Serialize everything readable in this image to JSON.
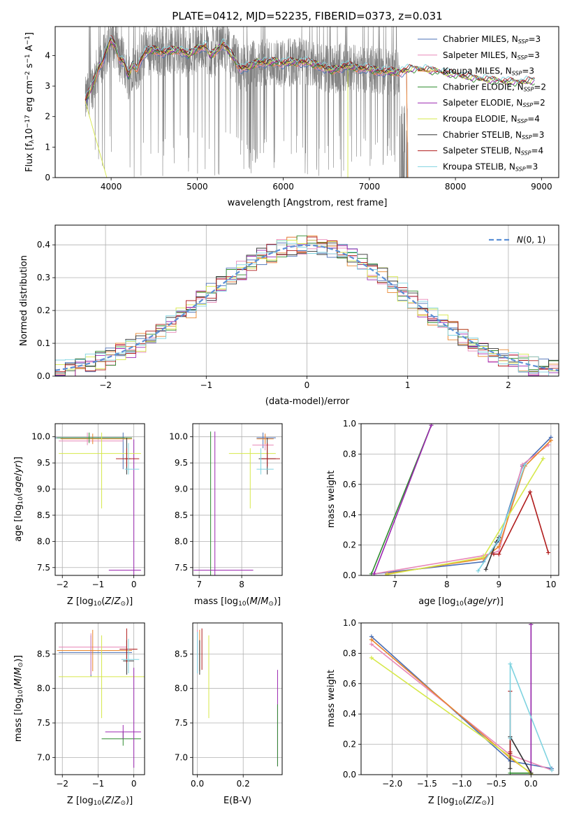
{
  "figure": {
    "title": "PLATE=0412, MJD=52235, FIBERID=0373, z=0.031"
  },
  "colors": {
    "Chabrier MILES": "#4a6fb5",
    "Salpeter MILES": "#e888b8",
    "Kroupa MILES": "#e8852c",
    "Chabrier ELODIE": "#2e8b2e",
    "Salpeter ELODIE": "#9c27b0",
    "Kroupa ELODIE": "#d6e84a",
    "Chabrier STELIB": "#333333",
    "Salpeter STELIB": "#b01c1c",
    "Kroupa STELIB": "#7fd3e0",
    "data": "#808080",
    "gaussian": "#5b8fd6"
  },
  "chart_data": [
    {
      "id": "spectrum",
      "type": "line",
      "xlabel": "wavelength [Angstrom, rest frame]",
      "ylabel": "Flux [f_λ 10^-17 erg cm^-2 s^-1 A^-1]",
      "xlim": [
        3350,
        9200
      ],
      "ylim": [
        0,
        4.95
      ],
      "xticks": [
        4000,
        5000,
        6000,
        7000,
        8000,
        9000
      ],
      "yticks": [
        0,
        1,
        2,
        3,
        4
      ],
      "legend_position": "top-right",
      "legend": [
        {
          "base": "Chabrier MILES, N",
          "sub": "SSP",
          "tail": "=3"
        },
        {
          "base": "Salpeter MILES, N",
          "sub": "SSP",
          "tail": "=3"
        },
        {
          "base": "Kroupa MILES, N",
          "sub": "SSP",
          "tail": "=3"
        },
        {
          "base": "Chabrier ELODIE, N",
          "sub": "SSP",
          "tail": "=2"
        },
        {
          "base": "Salpeter ELODIE, N",
          "sub": "SSP",
          "tail": "=2"
        },
        {
          "base": "Kroupa ELODIE, N",
          "sub": "SSP",
          "tail": "=4"
        },
        {
          "base": "Chabrier STELIB, N",
          "sub": "SSP",
          "tail": "=3"
        },
        {
          "base": "Salpeter STELIB, N",
          "sub": "SSP",
          "tail": "=4"
        },
        {
          "base": "Kroupa STELIB, N",
          "sub": "SSP",
          "tail": "=3"
        }
      ],
      "model_curve": {
        "x": [
          3700,
          3780,
          3850,
          3900,
          3950,
          4000,
          4050,
          4100,
          4150,
          4200,
          4250,
          4300,
          4350,
          4400,
          4500,
          4600,
          4700,
          4800,
          4900,
          5000,
          5100,
          5150,
          5200,
          5300,
          5400,
          5500,
          5600,
          5700,
          5800,
          5900,
          6000,
          6200,
          6400,
          6563,
          6700,
          6900,
          7100,
          7300,
          7500,
          7700,
          7900,
          8100,
          8300,
          8500,
          8700,
          8900
        ],
        "y": [
          2.5,
          3.0,
          3.6,
          3.8,
          4.2,
          4.5,
          4.3,
          3.9,
          3.8,
          3.3,
          3.7,
          3.6,
          3.9,
          4.1,
          4.2,
          4.1,
          4.15,
          4.2,
          4.0,
          4.25,
          4.3,
          4.0,
          4.1,
          4.4,
          4.0,
          3.6,
          3.6,
          3.8,
          3.75,
          3.8,
          3.75,
          3.8,
          3.7,
          3.5,
          3.65,
          3.6,
          3.5,
          3.45,
          3.55,
          3.5,
          3.4,
          3.3,
          3.2,
          3.15,
          3.1,
          3.15
        ]
      },
      "data_range": [
        3700,
        7450
      ]
    },
    {
      "id": "residuals",
      "type": "line",
      "xlabel": "(data-model)/error",
      "ylabel": "Normed distribution",
      "xlim": [
        -2.5,
        2.5
      ],
      "ylim": [
        0,
        0.46
      ],
      "xticks": [
        -2,
        -1,
        0,
        1,
        2
      ],
      "yticks": [
        0.0,
        0.1,
        0.2,
        0.3,
        0.4
      ],
      "grid": true,
      "legend_position": "top-right",
      "legend": [
        {
          "label": "N(0, 1)"
        }
      ],
      "bin_width": 0.1
    },
    {
      "id": "age_vs_Z",
      "type": "scatter",
      "xlabel": "Z [log10(Z/Z_sun)]",
      "ylabel": "age [log10(age/yr)]",
      "xlim": [
        -2.2,
        0.3
      ],
      "ylim": [
        7.35,
        10.25
      ],
      "xticks": [
        -2,
        -1,
        0
      ],
      "yticks": [
        7.5,
        8.0,
        8.5,
        9.0,
        9.5,
        10.0
      ],
      "grid": true
    },
    {
      "id": "age_vs_mass",
      "type": "scatter",
      "xlabel": "mass [log10(M/M_sun)]",
      "xlim": [
        6.85,
        8.95
      ],
      "ylim": [
        7.35,
        10.25
      ],
      "xticks": [
        7,
        8
      ],
      "yticks": [
        7.5,
        8.0,
        8.5,
        9.0,
        9.5,
        10.0
      ],
      "grid": true
    },
    {
      "id": "weight_vs_age",
      "type": "line",
      "xlabel": "age [log10(age/yr)]",
      "ylabel": "mass weight",
      "xlim": [
        6.35,
        10.15
      ],
      "ylim": [
        0,
        1
      ],
      "xticks": [
        7,
        8,
        9,
        10
      ],
      "yticks": [
        0.0,
        0.2,
        0.4,
        0.6,
        0.8,
        1.0
      ],
      "grid": true,
      "series": [
        {
          "name": "Chabrier MILES",
          "x": [
            6.6,
            8.7,
            9.0,
            9.45,
            10.0
          ],
          "y": [
            0.01,
            0.09,
            0.23,
            0.72,
            0.91
          ]
        },
        {
          "name": "Salpeter MILES",
          "x": [
            6.6,
            8.7,
            9.0,
            9.45,
            9.95
          ],
          "y": [
            0.01,
            0.13,
            0.16,
            0.73,
            0.86
          ]
        },
        {
          "name": "Kroupa MILES",
          "x": [
            6.85,
            8.7,
            9.0,
            9.5,
            10.0
          ],
          "y": [
            0.01,
            0.11,
            0.19,
            0.72,
            0.89
          ]
        },
        {
          "name": "Chabrier ELODIE",
          "x": [
            6.55,
            7.7
          ],
          "y": [
            0.01,
            0.99
          ]
        },
        {
          "name": "Salpeter ELODIE",
          "x": [
            6.6,
            7.7
          ],
          "y": [
            0.01,
            0.99
          ]
        },
        {
          "name": "Kroupa ELODIE",
          "x": [
            6.85,
            8.7,
            9.85
          ],
          "y": [
            0.005,
            0.12,
            0.77
          ]
        },
        {
          "name": "Chabrier STELIB",
          "x": [
            8.75,
            8.95,
            9.0
          ],
          "y": [
            0.04,
            0.22,
            0.25
          ]
        },
        {
          "name": "Salpeter STELIB",
          "x": [
            8.9,
            9.0,
            9.6,
            9.95
          ],
          "y": [
            0.14,
            0.14,
            0.55,
            0.15
          ]
        },
        {
          "name": "Kroupa STELIB",
          "x": [
            8.6,
            9.0,
            9.5
          ],
          "y": [
            0.03,
            0.24,
            0.73
          ]
        }
      ]
    },
    {
      "id": "mass_vs_Z",
      "type": "scatter",
      "xlabel": "Z [log10(Z/Z_sun)]",
      "ylabel": "mass [log10(M/M_sun)]",
      "xlim": [
        -2.2,
        0.3
      ],
      "ylim": [
        6.75,
        8.95
      ],
      "xticks": [
        -2,
        -1,
        0
      ],
      "yticks": [
        7.0,
        7.5,
        8.0,
        8.5
      ],
      "grid": true
    },
    {
      "id": "mass_vs_EBV",
      "type": "scatter",
      "xlabel": "E(B-V)",
      "xlim": [
        -0.02,
        0.37
      ],
      "ylim": [
        6.75,
        8.95
      ],
      "xticks": [
        0.0,
        0.2
      ],
      "yticks": [
        7.0,
        7.5,
        8.0,
        8.5
      ],
      "grid": true
    },
    {
      "id": "weight_vs_Z",
      "type": "line",
      "xlabel": "Z [log10(Z/Z_sun)]",
      "ylabel": "mass weight",
      "xlim": [
        -2.45,
        0.4
      ],
      "ylim": [
        0,
        1
      ],
      "xticks": [
        -2.0,
        -1.5,
        -1.0,
        -0.5,
        0.0
      ],
      "yticks": [
        0.0,
        0.2,
        0.4,
        0.6,
        0.8,
        1.0
      ],
      "grid": true,
      "series": [
        {
          "name": "Chabrier MILES",
          "x": [
            -2.3,
            -0.3,
            0.3
          ],
          "y": [
            0.91,
            0.09,
            0.04
          ]
        },
        {
          "name": "Salpeter MILES",
          "x": [
            -2.3,
            -0.3,
            0.3
          ],
          "y": [
            0.86,
            0.13,
            0.03
          ]
        },
        {
          "name": "Kroupa MILES",
          "x": [
            -2.3,
            -0.3,
            0.0
          ],
          "y": [
            0.89,
            0.11,
            0.01
          ]
        },
        {
          "name": "Chabrier ELODIE",
          "x": [
            -0.3,
            0.0,
            0.0
          ],
          "y": [
            0.01,
            0.01,
            0.99
          ]
        },
        {
          "name": "Salpeter ELODIE",
          "x": [
            0.0,
            0.0
          ],
          "y": [
            0.01,
            0.99
          ]
        },
        {
          "name": "Kroupa ELODIE",
          "x": [
            -2.3,
            -0.3,
            0.0
          ],
          "y": [
            0.77,
            0.12,
            0.005
          ]
        },
        {
          "name": "Chabrier STELIB",
          "x": [
            -0.3,
            -0.3,
            0.0
          ],
          "y": [
            0.04,
            0.25,
            0.01
          ]
        },
        {
          "name": "Salpeter STELIB",
          "x": [
            -0.3,
            -0.3,
            -0.3
          ],
          "y": [
            0.14,
            0.55,
            0.15
          ]
        },
        {
          "name": "Kroupa STELIB",
          "x": [
            -0.3,
            -0.3,
            0.3
          ],
          "y": [
            0.24,
            0.73,
            0.03
          ]
        }
      ]
    }
  ]
}
